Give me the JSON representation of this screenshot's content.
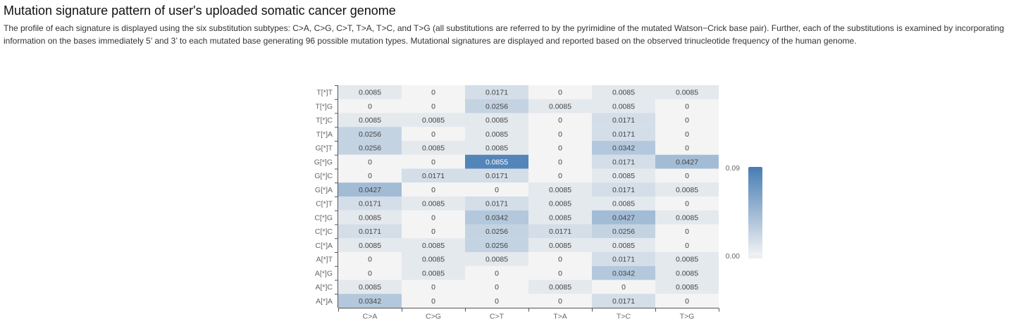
{
  "header": {
    "title": "Mutation signature pattern of user's uploaded somatic cancer genome",
    "description": "The profile of each signature is displayed using the six substitution subtypes: C>A, C>G, C>T, T>A, T>C, and T>G (all substitutions are referred to by the pyrimidine of the mutated Watson−Crick base pair). Further, each of the substitutions is examined by incorporating information on the bases immediately 5’ and 3’ to each mutated base generating 96 possible mutation types. Mutational signatures are displayed and reported based on the observed trinucleotide frequency of the human genome."
  },
  "chart_data": {
    "type": "heatmap",
    "x_categories": [
      "C>A",
      "C>G",
      "C>T",
      "T>A",
      "T>C",
      "T>G"
    ],
    "y_categories": [
      "T[*]T",
      "T[*]G",
      "T[*]C",
      "T[*]A",
      "G[*]T",
      "G[*]G",
      "G[*]C",
      "G[*]A",
      "C[*]T",
      "C[*]G",
      "C[*]C",
      "C[*]A",
      "A[*]T",
      "A[*]G",
      "A[*]C",
      "A[*]A"
    ],
    "values": [
      [
        "0.0085",
        "0",
        "0.0171",
        "0",
        "0.0085",
        "0.0085"
      ],
      [
        "0",
        "0",
        "0.0256",
        "0.0085",
        "0.0085",
        "0"
      ],
      [
        "0.0085",
        "0.0085",
        "0.0085",
        "0",
        "0.0171",
        "0"
      ],
      [
        "0.0256",
        "0",
        "0.0085",
        "0",
        "0.0171",
        "0"
      ],
      [
        "0.0256",
        "0.0085",
        "0.0085",
        "0",
        "0.0342",
        "0"
      ],
      [
        "0",
        "0",
        "0.0855",
        "0",
        "0.0171",
        "0.0427"
      ],
      [
        "0",
        "0.0171",
        "0.0171",
        "0",
        "0.0085",
        "0"
      ],
      [
        "0.0427",
        "0",
        "0",
        "0.0085",
        "0.0171",
        "0.0085"
      ],
      [
        "0.0171",
        "0.0085",
        "0.0171",
        "0.0085",
        "0.0085",
        "0"
      ],
      [
        "0.0085",
        "0",
        "0.0342",
        "0.0085",
        "0.0427",
        "0.0085"
      ],
      [
        "0.0171",
        "0",
        "0.0256",
        "0.0171",
        "0.0256",
        "0"
      ],
      [
        "0.0085",
        "0.0085",
        "0.0256",
        "0.0085",
        "0.0085",
        "0"
      ],
      [
        "0",
        "0.0085",
        "0.0085",
        "0",
        "0.0171",
        "0.0085"
      ],
      [
        "0",
        "0.0085",
        "0",
        "0",
        "0.0342",
        "0.0085"
      ],
      [
        "0.0085",
        "0",
        "0",
        "0.0085",
        "0",
        "0.0085"
      ],
      [
        "0.0342",
        "0",
        "0",
        "0",
        "0.0171",
        "0"
      ]
    ],
    "value_range": [
      0,
      0.09
    ],
    "visual_map": {
      "min_label": "0.00",
      "max_label": "0.09",
      "orientation": "vertical",
      "placement": "right"
    },
    "colors": {
      "low": "#f4f4f4",
      "high": "#4a7fb5",
      "grid_background": "#f4f4f4",
      "text_dark": "#444444",
      "text_light": "#ffffff"
    },
    "grid": false,
    "legend": false
  }
}
